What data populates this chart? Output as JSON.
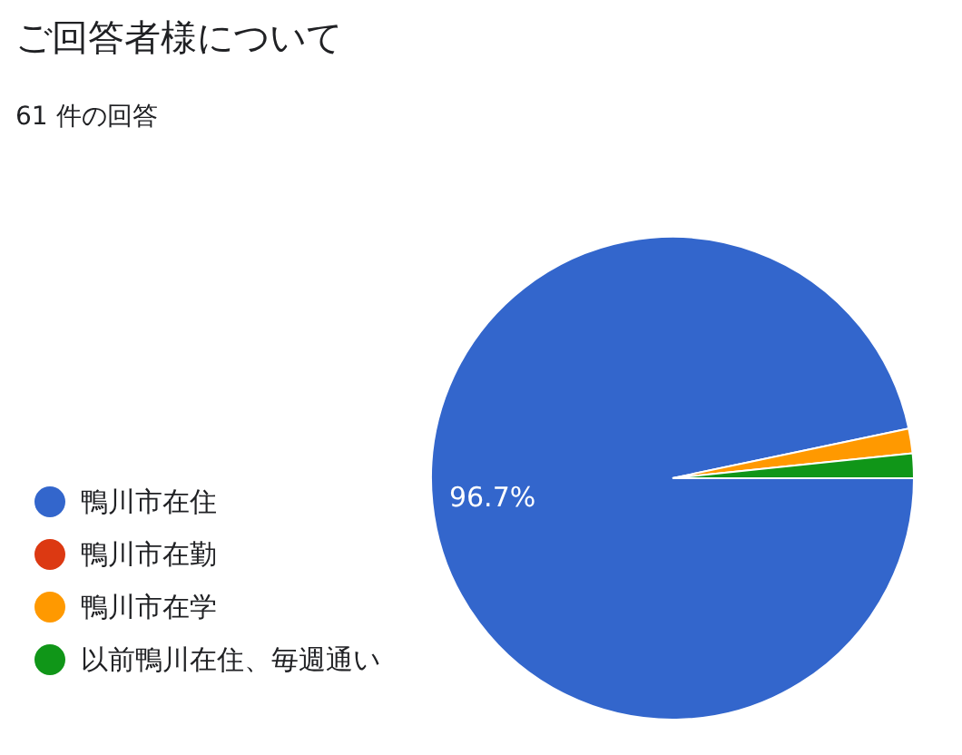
{
  "chart_data": {
    "type": "pie",
    "title": "ご回答者様について",
    "subtitle": "61 件の回答",
    "categories": [
      "鴨川市在住",
      "鴨川市在勤",
      "鴨川市在学",
      "以前鴨川在住、毎週通い"
    ],
    "values": [
      96.7,
      0,
      1.65,
      1.65
    ],
    "colors": [
      "#3366cc",
      "#dc3912",
      "#ff9900",
      "#109618"
    ],
    "value_labels": [
      "96.7%",
      null,
      null,
      null
    ],
    "legend": "bottom left"
  }
}
